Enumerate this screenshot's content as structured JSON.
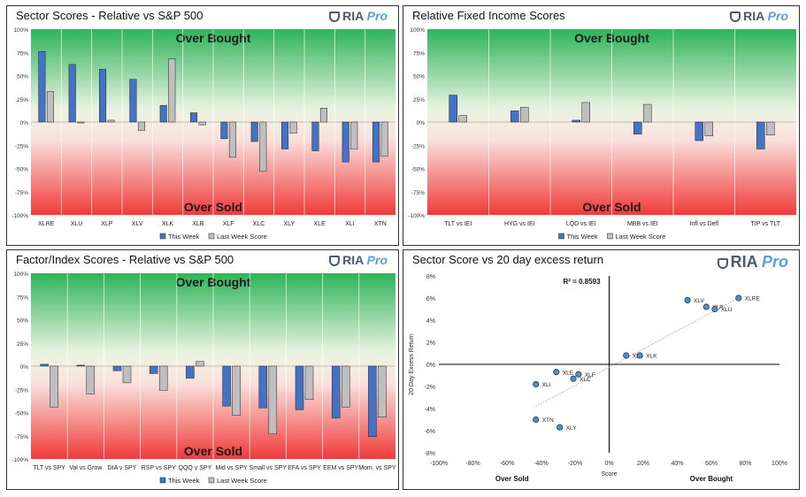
{
  "colors": {
    "this_week": "#4472C4",
    "last_week": "#BFBFBF",
    "green": "#2EB35A",
    "red": "#F03A3A",
    "scatter_point": "#5B8BC6"
  },
  "brand": {
    "ria": "RIA",
    "pro": "Pro"
  },
  "zones": {
    "overbought": "Over Bought",
    "oversold": "Over Sold"
  },
  "legend": {
    "this_week": "This Week",
    "last_week": "Last Week Score"
  },
  "chart_data": [
    {
      "type": "bar",
      "title": "Sector Scores - Relative vs S&P 500",
      "ylim": [
        -100,
        100
      ],
      "yticks": [
        "100%",
        "75%",
        "50%",
        "25%",
        "0%",
        "-25%",
        "-50%",
        "-75%",
        "-100%"
      ],
      "categories": [
        "XLRE",
        "XLU",
        "XLP",
        "XLV",
        "XLK",
        "XLB",
        "XLF",
        "XLC",
        "XLY",
        "XLE",
        "XLI",
        "XTN"
      ],
      "series": [
        {
          "name": "This Week",
          "values": [
            76,
            62,
            57,
            46,
            18,
            10,
            -18,
            -21,
            -29,
            -31,
            -43,
            -43
          ]
        },
        {
          "name": "Last Week Score",
          "values": [
            33,
            -1,
            2,
            -9,
            68,
            -3,
            -38,
            -53,
            -12,
            15,
            -29,
            -37
          ]
        }
      ]
    },
    {
      "type": "bar",
      "title": "Relative Fixed Income Scores",
      "ylim": [
        -100,
        100
      ],
      "yticks": [
        "100%",
        "75%",
        "50%",
        "25%",
        "0%",
        "-25%",
        "-50%",
        "-75%",
        "-100%"
      ],
      "categories": [
        "TLT vs IEI",
        "HYG vs IEI",
        "LQD vs IEI",
        "MBB vs IEI",
        "Infl vs Defl",
        "TIP vs TLT"
      ],
      "series": [
        {
          "name": "This Week",
          "values": [
            29,
            12,
            2,
            -13,
            -20,
            -29
          ]
        },
        {
          "name": "Last Week Score",
          "values": [
            7,
            16,
            21,
            19,
            -15,
            -14
          ]
        }
      ]
    },
    {
      "type": "bar",
      "title": "Factor/Index Scores - Relative vs S&P 500",
      "ylim": [
        -100,
        100
      ],
      "yticks": [
        "100%",
        "75%",
        "50%",
        "25%",
        "0%",
        "-25%",
        "-50%",
        "-75%",
        "-100%"
      ],
      "categories": [
        "TLT vs SPY",
        "Val vs Grow",
        "DIA v SPY",
        "RSP vs SPY",
        "QQQ v SPY",
        "Mid vs SPY",
        "Small vs SPY",
        "EFA vs SPY",
        "EEM vs SPY",
        "Mom. vs SPY"
      ],
      "series": [
        {
          "name": "This Week",
          "values": [
            2,
            1,
            -5,
            -8,
            -13,
            -43,
            -45,
            -47,
            -56,
            -76
          ]
        },
        {
          "name": "Last Week Score",
          "values": [
            -44,
            -30,
            -18,
            -26,
            5,
            -53,
            -73,
            -36,
            -44,
            -55
          ]
        }
      ]
    },
    {
      "type": "scatter",
      "title": "Sector Score vs 20 day excess return",
      "xlabel": "Score",
      "ylabel": "20 Day Excess Return",
      "xlim": [
        -100,
        100
      ],
      "ylim": [
        -8,
        8
      ],
      "xticks": [
        "-100%",
        "-80%",
        "-60%",
        "-40%",
        "-20%",
        "0%",
        "20%",
        "40%",
        "60%",
        "80%",
        "100%"
      ],
      "yticks": [
        "8%",
        "6%",
        "4%",
        "2%",
        "0%",
        "-2%",
        "-4%",
        "-6%",
        "-8%"
      ],
      "r2_label": "R² = 0.8593",
      "x_left_label": "Over Sold",
      "x_right_label": "Over Bought",
      "points": [
        {
          "label": "XLRE",
          "x": 76,
          "y": 6.0
        },
        {
          "label": "XLV",
          "x": 46,
          "y": 5.8
        },
        {
          "label": "XLP",
          "x": 57,
          "y": 5.2
        },
        {
          "label": "XLU",
          "x": 62,
          "y": 5.0
        },
        {
          "label": "XLB",
          "x": 10,
          "y": 0.8
        },
        {
          "label": "XLK",
          "x": 18,
          "y": 0.8
        },
        {
          "label": "XLE",
          "x": -31,
          "y": -0.7
        },
        {
          "label": "XLF",
          "x": -18,
          "y": -0.9
        },
        {
          "label": "XLC",
          "x": -21,
          "y": -1.3
        },
        {
          "label": "XLI",
          "x": -43,
          "y": -1.8
        },
        {
          "label": "XTN",
          "x": -43,
          "y": -5.0
        },
        {
          "label": "XLY",
          "x": -29,
          "y": -5.7
        }
      ],
      "trendline": {
        "x_from": -43,
        "x_to": 76,
        "y_from": -3.8,
        "y_to": 6.0
      }
    }
  ]
}
